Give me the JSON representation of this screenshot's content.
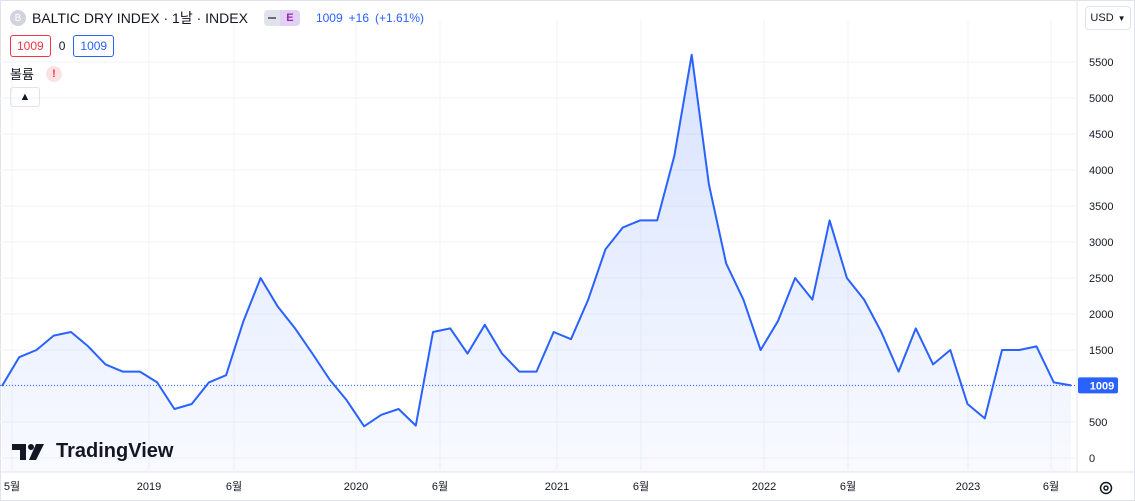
{
  "header": {
    "symbol_initial": "B",
    "title": "BALTIC DRY INDEX · 1날 · INDEX",
    "badge": "E",
    "last": "1009",
    "change": "+16",
    "change_pct": "(+1.61%)"
  },
  "prices": {
    "bid": "1009",
    "spread": "0",
    "ask": "1009"
  },
  "volume_label": "볼륨",
  "warning_symbol": "!",
  "currency": "USD",
  "logo_text": "TradingView",
  "icons": {
    "collapse": "chevron-up-icon",
    "currency_menu": "chevron-down-icon",
    "settings": "gear-icon",
    "logo": "tradingview-logo-icon"
  },
  "colors": {
    "line": "#2962ff",
    "fill": "#2962ff",
    "price_label_bg": "#2962ff"
  },
  "chart_data": {
    "type": "area",
    "series": [
      {
        "name": "BALTIC DRY INDEX",
        "x": [
          "2018-05",
          "2018-06",
          "2018-07",
          "2018-08",
          "2018-09",
          "2018-10",
          "2018-11",
          "2018-12",
          "2019-01",
          "2019-02",
          "2019-03",
          "2019-04",
          "2019-05",
          "2019-06",
          "2019-07",
          "2019-08",
          "2019-09",
          "2019-10",
          "2019-11",
          "2019-12",
          "2020-01",
          "2020-02",
          "2020-03",
          "2020-04",
          "2020-05",
          "2020-06",
          "2020-07",
          "2020-08",
          "2020-09",
          "2020-10",
          "2020-11",
          "2020-12",
          "2021-01",
          "2021-02",
          "2021-03",
          "2021-04",
          "2021-05",
          "2021-06",
          "2021-07",
          "2021-08",
          "2021-09",
          "2021-10",
          "2021-11",
          "2021-12",
          "2022-01",
          "2022-02",
          "2022-03",
          "2022-04",
          "2022-05",
          "2022-06",
          "2022-07",
          "2022-08",
          "2022-09",
          "2022-10",
          "2022-11",
          "2022-12",
          "2023-01",
          "2023-02",
          "2023-03",
          "2023-04",
          "2023-05",
          "2023-06",
          "2023-07"
        ],
        "values": [
          1000,
          1400,
          1500,
          1700,
          1750,
          1550,
          1300,
          1200,
          1200,
          1050,
          680,
          750,
          1050,
          1150,
          1900,
          2500,
          2100,
          1800,
          1450,
          1090,
          800,
          440,
          600,
          680,
          450,
          1750,
          1800,
          1450,
          1850,
          1450,
          1200,
          1200,
          1750,
          1650,
          2200,
          2900,
          3200,
          3300,
          3300,
          4200,
          5600,
          3800,
          2700,
          2200,
          1500,
          1900,
          2500,
          2200,
          3300,
          2500,
          2200,
          1750,
          1200,
          1800,
          1300,
          1500,
          750,
          550,
          1500,
          1500,
          1550,
          1050,
          1009
        ]
      }
    ],
    "y_ticks": [
      0,
      500,
      1000,
      1500,
      2000,
      2500,
      3000,
      3500,
      4000,
      4500,
      5000,
      5500
    ],
    "ylim": [
      -300,
      5600
    ],
    "x_tick_labels": [
      "5월",
      "2019",
      "6월",
      "2020",
      "6월",
      "2021",
      "6월",
      "2022",
      "6월",
      "2023",
      "6월"
    ],
    "last_value": 1009,
    "last_value_label": "1009",
    "grid": true,
    "legend": "none"
  }
}
